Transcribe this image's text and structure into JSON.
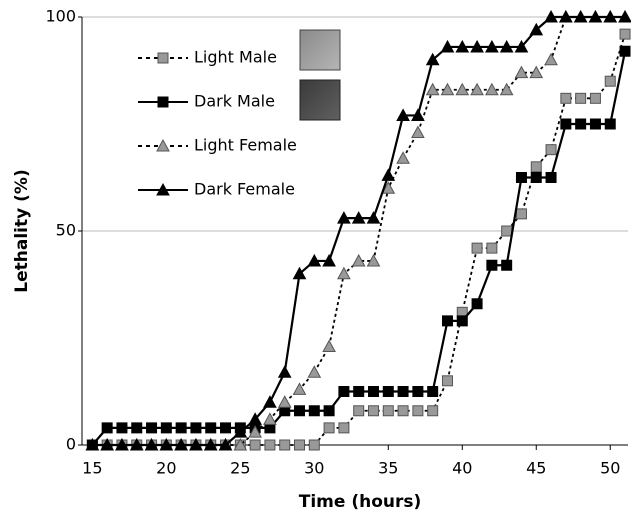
{
  "chart_data": {
    "type": "line",
    "xlabel": "Time (hours)",
    "ylabel": "Lethality (%)",
    "x": [
      15,
      16,
      17,
      18,
      19,
      20,
      21,
      22,
      23,
      24,
      25,
      26,
      27,
      28,
      29,
      30,
      31,
      32,
      33,
      34,
      35,
      36,
      37,
      38,
      39,
      40,
      41,
      42,
      43,
      44,
      45,
      46,
      47,
      48,
      49,
      50,
      51
    ],
    "series": [
      {
        "name": "Light Male",
        "color": "#999999",
        "marker": "square",
        "line_style": "dotted",
        "values": [
          0,
          0,
          0,
          0,
          0,
          0,
          0,
          0,
          0,
          0,
          0,
          0,
          0,
          0,
          0,
          0,
          4,
          4,
          8,
          8,
          8,
          8,
          8,
          8,
          15,
          31,
          46,
          46,
          50,
          54,
          65,
          69,
          81,
          81,
          81,
          85,
          96
        ]
      },
      {
        "name": "Dark Male",
        "color": "#000000",
        "marker": "square",
        "line_style": "solid",
        "values": [
          0,
          4,
          4,
          4,
          4,
          4,
          4,
          4,
          4,
          4,
          4,
          4,
          4,
          8,
          8,
          8,
          8,
          12.5,
          12.5,
          12.5,
          12.5,
          12.5,
          12.5,
          12.5,
          29,
          29,
          33,
          42,
          42,
          62.5,
          62.5,
          62.5,
          75,
          75,
          75,
          75,
          92
        ]
      },
      {
        "name": "Light Female",
        "color": "#999999",
        "marker": "triangle",
        "line_style": "dotted",
        "values": [
          0,
          0,
          0,
          0,
          0,
          0,
          0,
          0,
          0,
          0,
          0,
          3,
          6,
          10,
          13,
          17,
          23,
          40,
          43,
          43,
          60,
          67,
          73,
          83,
          83,
          83,
          83,
          83,
          83,
          87,
          87,
          90,
          100,
          100,
          100,
          100,
          100
        ]
      },
      {
        "name": "Dark Female",
        "color": "#000000",
        "marker": "triangle",
        "line_style": "solid",
        "values": [
          0,
          0,
          0,
          0,
          0,
          0,
          0,
          0,
          0,
          0,
          3,
          6,
          10,
          17,
          40,
          43,
          43,
          53,
          53,
          53,
          63,
          77,
          77,
          90,
          93,
          93,
          93,
          93,
          93,
          93,
          97,
          100,
          100,
          100,
          100,
          100,
          100
        ]
      }
    ],
    "xlim": [
      14.3,
      51.2
    ],
    "ylim": [
      0,
      100
    ],
    "xticks": [
      15,
      20,
      25,
      30,
      35,
      40,
      45,
      50
    ],
    "yticks": [
      0,
      50,
      100
    ],
    "grid": true,
    "legend": "upper left"
  }
}
